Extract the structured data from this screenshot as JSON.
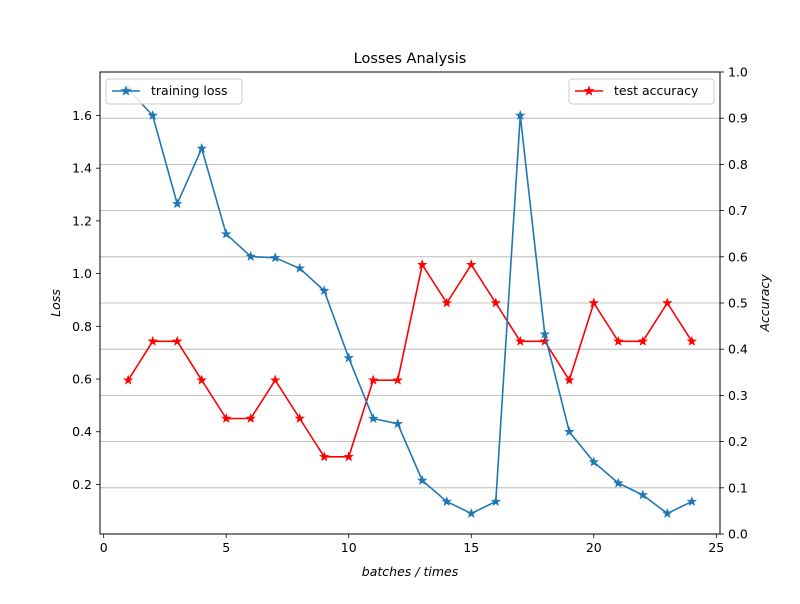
{
  "chart_data": {
    "type": "line",
    "title": "Losses Analysis",
    "xlabel": "batches / times",
    "ylabel_left": "Loss",
    "ylabel_right": "Accuracy",
    "xlim": [
      -0.15,
      25.15
    ],
    "ylim_left": [
      0.012,
      1.765
    ],
    "ylim_right": [
      0.0,
      1.0
    ],
    "x_ticks": [
      0,
      5,
      10,
      15,
      20,
      25
    ],
    "x_tick_labels": [
      "0",
      "5",
      "10",
      "15",
      "20",
      "25"
    ],
    "y_left_ticks": [
      0.2,
      0.4,
      0.6,
      0.8,
      1.0,
      1.2,
      1.4,
      1.6
    ],
    "y_left_tick_labels": [
      "0.2",
      "0.4",
      "0.6",
      "0.8",
      "1.0",
      "1.2",
      "1.4",
      "1.6"
    ],
    "y_right_ticks": [
      0.0,
      0.1,
      0.2,
      0.3,
      0.4,
      0.5,
      0.6,
      0.7,
      0.8,
      0.9,
      1.0
    ],
    "y_right_tick_labels": [
      "0.0",
      "0.1",
      "0.2",
      "0.3",
      "0.4",
      "0.5",
      "0.6",
      "0.7",
      "0.8",
      "0.9",
      "1.0"
    ],
    "grid": "horizontal lines at right-axis ticks",
    "series": [
      {
        "name": "training loss",
        "axis": "left",
        "color": "#1f77b4",
        "marker": "star",
        "legend_position": "upper-left",
        "x": [
          1,
          2,
          3,
          4,
          5,
          6,
          7,
          8,
          9,
          10,
          11,
          12,
          13,
          14,
          15,
          16,
          17,
          18,
          19,
          20,
          21,
          22,
          23,
          24
        ],
        "values": [
          1.7,
          1.6,
          1.265,
          1.475,
          1.15,
          1.065,
          1.06,
          1.02,
          0.935,
          0.68,
          0.45,
          0.43,
          0.215,
          0.135,
          0.09,
          0.135,
          1.6,
          0.77,
          0.4,
          0.285,
          0.205,
          0.16,
          0.09,
          0.135
        ]
      },
      {
        "name": "test accuracy",
        "axis": "right",
        "color": "#ff0000",
        "marker": "star",
        "legend_position": "upper-right",
        "x": [
          1,
          2,
          3,
          4,
          5,
          6,
          7,
          8,
          9,
          10,
          11,
          12,
          13,
          14,
          15,
          16,
          17,
          18,
          19,
          20,
          21,
          22,
          23,
          24
        ],
        "values": [
          0.333,
          0.417,
          0.417,
          0.333,
          0.25,
          0.25,
          0.333,
          0.25,
          0.167,
          0.167,
          0.333,
          0.333,
          0.583,
          0.5,
          0.583,
          0.5,
          0.417,
          0.417,
          0.333,
          0.5,
          0.417,
          0.417,
          0.5,
          0.417
        ]
      }
    ]
  }
}
